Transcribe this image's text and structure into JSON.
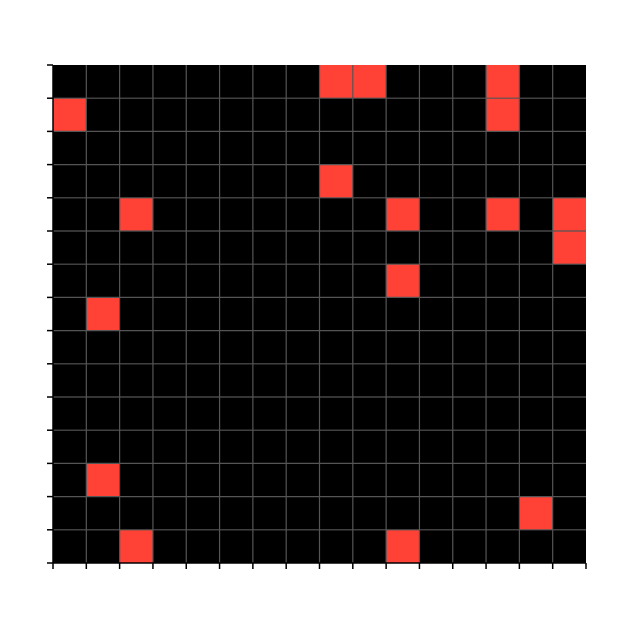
{
  "chart_data": {
    "type": "heatmap",
    "rows": 15,
    "cols": 16,
    "colors": {
      "background": "#000000",
      "filled": "#ff4136",
      "gridline": "#555555",
      "axis": "#000000"
    },
    "grid": true,
    "filled_cells": [
      {
        "row": 0,
        "col": 8
      },
      {
        "row": 0,
        "col": 9
      },
      {
        "row": 0,
        "col": 13
      },
      {
        "row": 1,
        "col": 0
      },
      {
        "row": 1,
        "col": 13
      },
      {
        "row": 3,
        "col": 8
      },
      {
        "row": 4,
        "col": 2
      },
      {
        "row": 4,
        "col": 10
      },
      {
        "row": 4,
        "col": 13
      },
      {
        "row": 4,
        "col": 15
      },
      {
        "row": 5,
        "col": 15
      },
      {
        "row": 6,
        "col": 10
      },
      {
        "row": 7,
        "col": 1
      },
      {
        "row": 12,
        "col": 1
      },
      {
        "row": 13,
        "col": 14
      },
      {
        "row": 14,
        "col": 2
      },
      {
        "row": 14,
        "col": 10
      }
    ],
    "title": "",
    "xlabel": "",
    "ylabel": ""
  }
}
